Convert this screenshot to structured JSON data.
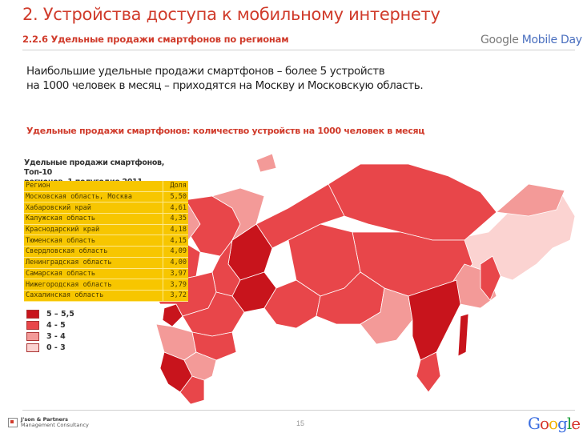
{
  "slide": {
    "title": "2. Устройства доступа к мобильному интернету",
    "subtitle": "2.2.6 Удельные продажи смартфонов по регионам",
    "brand_google": "Google",
    "brand_mobile_day": "Mobile Day",
    "headline_line1": "Наибольшие удельные продажи смартфонов – более 5 устройств",
    "headline_line2": "на 1000 человек в месяц – приходятся на Москву и Московскую область.",
    "map_caption": "Удельные продажи смартфонов: количество устройств на 1000 человек в месяц",
    "page_number": "15"
  },
  "top10": {
    "caption_line1": "Удельные продажи смартфонов, Топ-10",
    "caption_line2": "регионов, 1 полугодие 2011",
    "col_region": "Регион",
    "col_share": "Доля",
    "rows": [
      {
        "region": "Московская область, Москва",
        "value": "5,50"
      },
      {
        "region": "Хабаровский край",
        "value": "4,61"
      },
      {
        "region": "Калужская область",
        "value": "4,35"
      },
      {
        "region": "Краснодарский край",
        "value": "4,18"
      },
      {
        "region": "Тюменская область",
        "value": "4,15"
      },
      {
        "region": "Свердловская область",
        "value": "4,09"
      },
      {
        "region": "Ленинградская область",
        "value": "4,00"
      },
      {
        "region": "Самарская область",
        "value": "3,97"
      },
      {
        "region": "Нижегородская область",
        "value": "3,79"
      },
      {
        "region": "Сахалинская область",
        "value": "3,72"
      }
    ]
  },
  "legend": [
    {
      "label": "5 – 5,5",
      "color": "#c8141c"
    },
    {
      "label": "4 - 5",
      "color": "#e8464a"
    },
    {
      "label": "3 - 4",
      "color": "#f39a98"
    },
    {
      "label": "0 - 3",
      "color": "#fbd3d1"
    }
  ],
  "footer": {
    "jp_line1": "J'son & Partners",
    "jp_line2": "Management Consultancy",
    "google_logo": "Google"
  },
  "colors": {
    "accent": "#d03b2b",
    "table_fill": "#f7c600",
    "map_dark": "#c8141c",
    "map_mid": "#e8464a",
    "map_light": "#f39a98",
    "map_pale": "#fbd3d1"
  }
}
